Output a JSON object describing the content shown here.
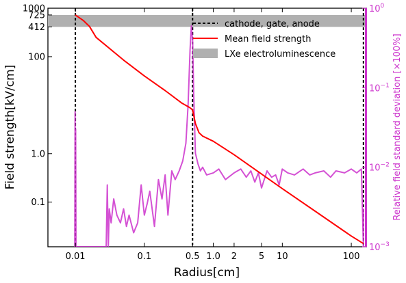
{
  "chart_data": {
    "type": "line",
    "xlabel": "Radius[cm]",
    "ylabel": "Field strength[kV/cm]",
    "ylabel_right": "Relative field standard deviation [×100%]",
    "x_scale": "log",
    "y_scale": "log",
    "y_right_scale": "log",
    "xlim": [
      0.004,
      165
    ],
    "ylim": [
      0.012,
      1000
    ],
    "ylim_right": [
      0.001,
      1
    ],
    "x_ticks": [
      {
        "value": 0.01,
        "label": "0.01"
      },
      {
        "value": 0.1,
        "label": "0.1"
      },
      {
        "value": 0.5,
        "label": "0.5"
      },
      {
        "value": 1,
        "label": "1.0"
      },
      {
        "value": 2,
        "label": "2"
      },
      {
        "value": 5,
        "label": "5"
      },
      {
        "value": 10,
        "label": "10"
      },
      {
        "value": 100,
        "label": "100"
      }
    ],
    "y_ticks": [
      {
        "value": 0.1,
        "label": "0.1"
      },
      {
        "value": 1,
        "label": "1.0"
      },
      {
        "value": 100,
        "label": "100"
      },
      {
        "value": 412,
        "label": "412"
      },
      {
        "value": 725,
        "label": "725"
      },
      {
        "value": 1000,
        "label": "1000"
      }
    ],
    "y_right_ticks": [
      {
        "value": 0.001,
        "label": "10^-3",
        "base": "10",
        "exp": "−3"
      },
      {
        "value": 0.01,
        "label": "10^-2",
        "base": "10",
        "exp": "−2"
      },
      {
        "value": 0.1,
        "label": "10^-1",
        "base": "10",
        "exp": "−1"
      },
      {
        "value": 1,
        "label": "10^0",
        "base": "10",
        "exp": "0"
      }
    ],
    "electrode_lines": [
      0.01,
      0.5,
      150
    ],
    "el_band": [
      412,
      725
    ],
    "legend": {
      "placement": "top-right",
      "entries": [
        {
          "label": "cathode, gate, anode",
          "style": "dashed",
          "color": "#000000"
        },
        {
          "label": "Mean field strength",
          "style": "line",
          "color": "#ff0000"
        },
        {
          "label": "LXe electroluminescence",
          "style": "band",
          "color": "#b0b0b0"
        }
      ]
    },
    "series": [
      {
        "name": "Mean field strength",
        "axis": "left",
        "color": "#ff0000",
        "x": [
          0.01,
          0.013,
          0.016,
          0.02,
          0.05,
          0.1,
          0.2,
          0.35,
          0.45,
          0.5,
          0.55,
          0.62,
          0.7,
          1,
          2,
          5,
          10,
          30,
          100,
          150
        ],
        "y": [
          725,
          560,
          420,
          250,
          85,
          40,
          20,
          11,
          9,
          8,
          4.2,
          2.7,
          2.3,
          1.8,
          0.95,
          0.38,
          0.19,
          0.065,
          0.02,
          0.014
        ]
      },
      {
        "name": "Relative field standard deviation",
        "axis": "right",
        "color": "#cc33cc",
        "x": [
          0.0098,
          0.0099,
          0.01,
          0.0101,
          0.0102,
          0.028,
          0.029,
          0.03,
          0.031,
          0.033,
          0.036,
          0.04,
          0.045,
          0.05,
          0.055,
          0.06,
          0.07,
          0.08,
          0.09,
          0.1,
          0.11,
          0.12,
          0.14,
          0.16,
          0.18,
          0.2,
          0.22,
          0.25,
          0.28,
          0.32,
          0.36,
          0.4,
          0.43,
          0.46,
          0.48,
          0.5,
          0.52,
          0.55,
          0.6,
          0.65,
          0.7,
          0.8,
          1.0,
          1.2,
          1.5,
          2.0,
          2.5,
          3.0,
          3.5,
          4.0,
          4.5,
          5.0,
          6.0,
          7.0,
          8.0,
          9.0,
          10,
          12,
          15,
          20,
          25,
          30,
          40,
          50,
          60,
          80,
          100,
          120,
          140,
          150,
          150.5
        ],
        "y": [
          0.001,
          0.05,
          0.001,
          0.03,
          0.001,
          0.001,
          0.006,
          0.001,
          0.003,
          0.002,
          0.004,
          0.0025,
          0.002,
          0.003,
          0.0018,
          0.0025,
          0.0015,
          0.002,
          0.006,
          0.0025,
          0.0035,
          0.005,
          0.0018,
          0.007,
          0.004,
          0.008,
          0.0025,
          0.009,
          0.007,
          0.009,
          0.012,
          0.02,
          0.06,
          0.3,
          0.6,
          0.4,
          0.08,
          0.015,
          0.011,
          0.009,
          0.01,
          0.008,
          0.0085,
          0.0095,
          0.007,
          0.0085,
          0.0095,
          0.0075,
          0.009,
          0.0065,
          0.0085,
          0.0055,
          0.009,
          0.0075,
          0.008,
          0.006,
          0.0095,
          0.0085,
          0.008,
          0.0095,
          0.008,
          0.0085,
          0.009,
          0.0075,
          0.009,
          0.0085,
          0.0095,
          0.0085,
          0.0095,
          0.001,
          0.003
        ]
      }
    ]
  }
}
